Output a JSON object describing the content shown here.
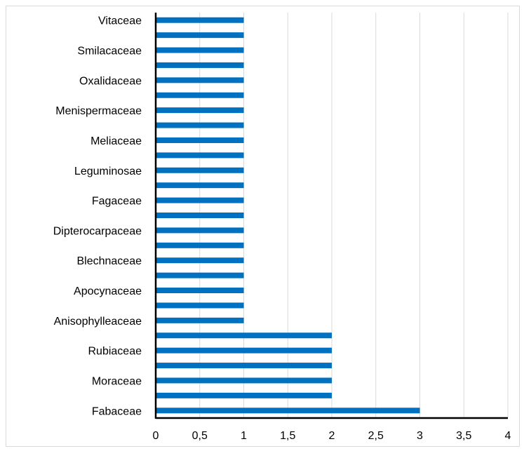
{
  "chart_data": {
    "type": "bar",
    "orientation": "horizontal",
    "categories": [
      "Fabaceae",
      "",
      "Moraceae",
      "",
      "Rubiaceae",
      "",
      "Anisophylleaceae",
      "",
      "Apocynaceae",
      "",
      "Blechnaceae",
      "",
      "Dipterocarpaceae",
      "",
      "Fagaceae",
      "",
      "Leguminosae",
      "",
      "Meliaceae",
      "",
      "Menispermaceae",
      "",
      "Oxalidaceae",
      "",
      "Smilacaceae",
      "",
      "Vitaceae"
    ],
    "values": [
      3,
      2,
      2,
      2,
      2,
      2,
      1,
      1,
      1,
      1,
      1,
      1,
      1,
      1,
      1,
      1,
      1,
      1,
      1,
      1,
      1,
      1,
      1,
      1,
      1,
      1,
      1
    ],
    "xlim": [
      0,
      4
    ],
    "xticks": [
      "0",
      "0,5",
      "1",
      "1,5",
      "2",
      "2,5",
      "3",
      "3,5",
      "4"
    ],
    "grid": true,
    "bar_color": "#0070C0",
    "title": "",
    "xlabel": "",
    "ylabel": ""
  }
}
